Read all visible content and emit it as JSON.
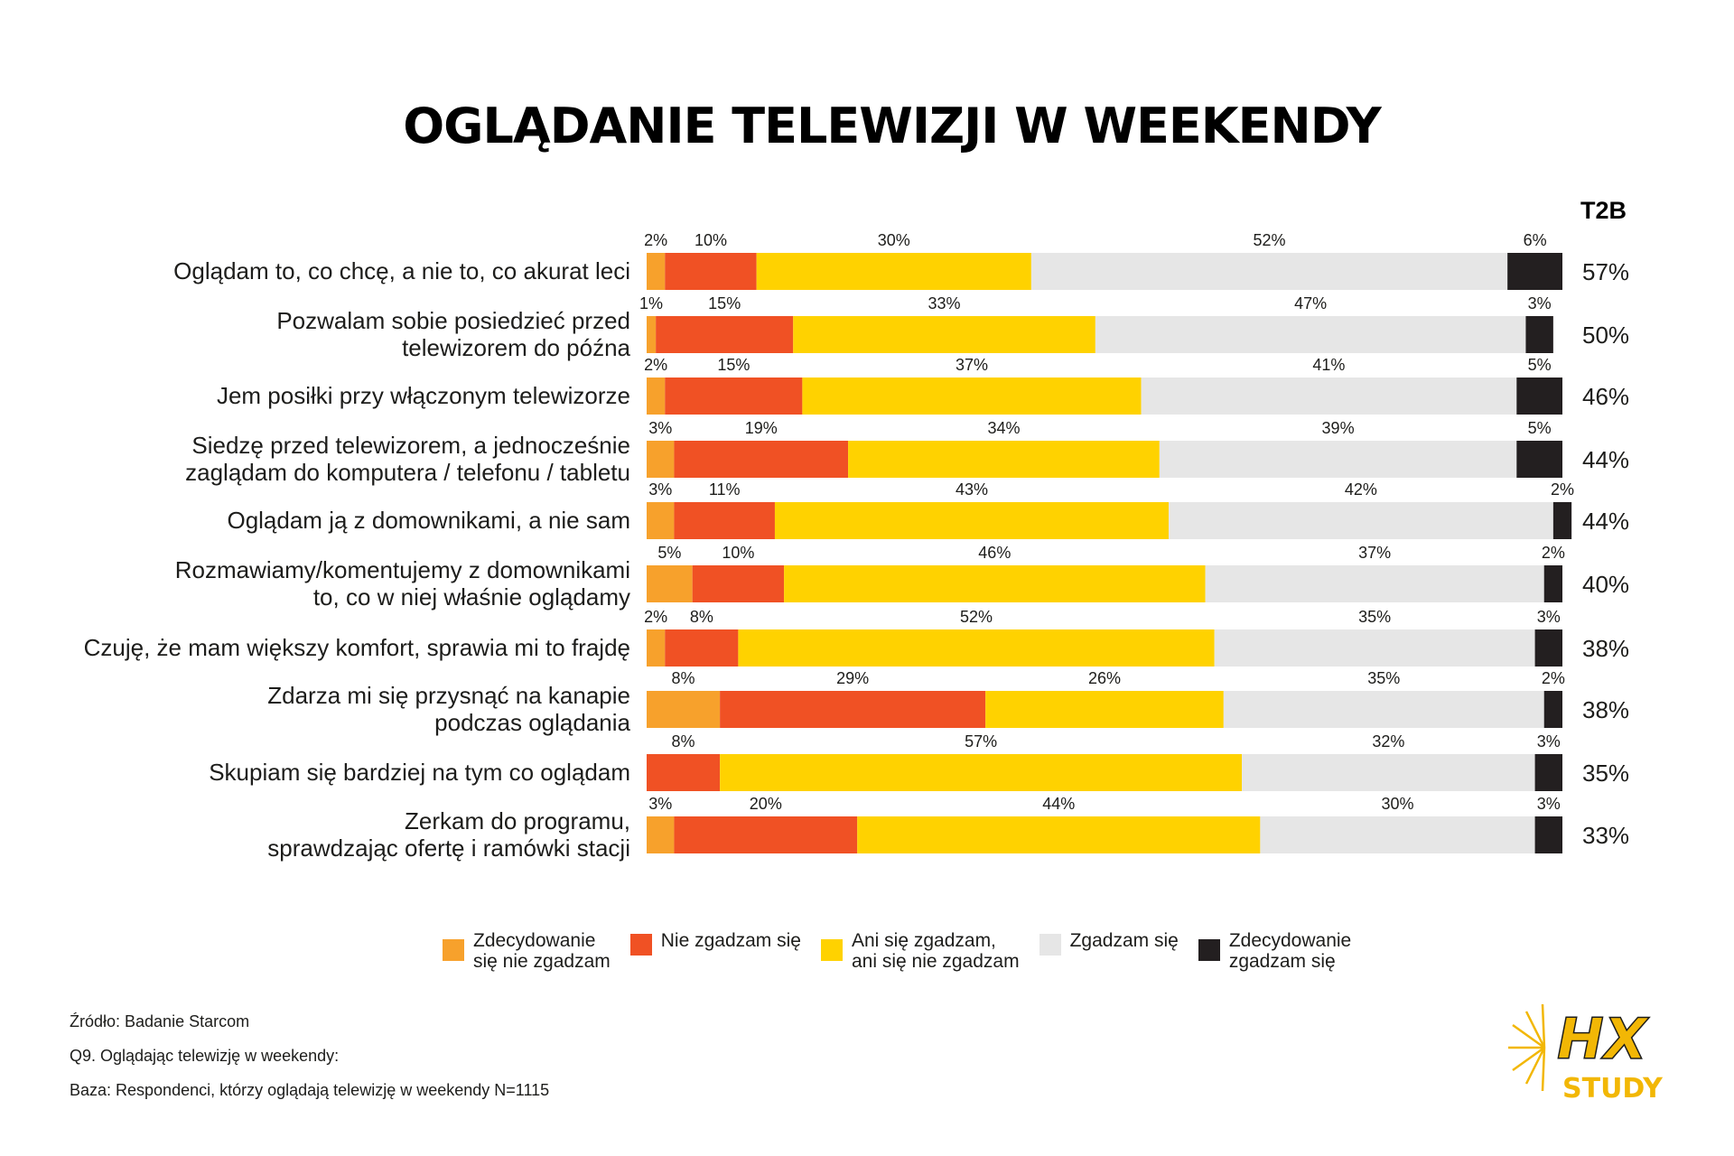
{
  "title": "OGLĄDANIE TELEWIZJI W WEEKENDY",
  "t2b_header": "T2B",
  "colors": {
    "strongly_disagree": "#F7A12C",
    "disagree": "#F05124",
    "neutral": "#FFD200",
    "agree": "#E6E6E6",
    "strongly_agree": "#231F20"
  },
  "chart_data": {
    "type": "bar",
    "orientation": "horizontal-stacked-100",
    "title": "OGLĄDANIE TELEWIZJI W WEEKENDY",
    "categories": [
      [
        "Oglądam to, co chcę, a nie to, co akurat leci"
      ],
      [
        "Pozwalam sobie posiedzieć przed",
        "telewizorem do późna"
      ],
      [
        "Jem posiłki przy włączonym telewizorze"
      ],
      [
        "Siedzę przed telewizorem, a jednocześnie",
        "zaglądam do komputera / telefonu / tabletu"
      ],
      [
        "Oglądam ją z domownikami, a nie sam"
      ],
      [
        "Rozmawiamy/komentujemy z domownikami",
        "to, co w niej właśnie oglądamy"
      ],
      [
        "Czuję, że mam większy komfort, sprawia mi to frajdę"
      ],
      [
        "Zdarza mi się przysnąć na kanapie",
        "podczas oglądania"
      ],
      [
        "Skupiam się bardziej na tym co oglądam"
      ],
      [
        "Zerkam do programu,",
        "sprawdzając ofertę i ramówki stacji"
      ]
    ],
    "series": [
      {
        "name": "Zdecydowanie się nie zgadzam",
        "color": "#F7A12C",
        "values": [
          2,
          1,
          2,
          3,
          3,
          5,
          2,
          8,
          0,
          3
        ]
      },
      {
        "name": "Nie zgadzam się",
        "color": "#F05124",
        "values": [
          10,
          15,
          15,
          19,
          11,
          10,
          8,
          29,
          8,
          20
        ]
      },
      {
        "name": "Ani się zgadzam, ani się nie zgadzam",
        "color": "#FFD200",
        "values": [
          30,
          33,
          37,
          34,
          43,
          46,
          52,
          26,
          57,
          44
        ]
      },
      {
        "name": "Zgadzam się",
        "color": "#E6E6E6",
        "values": [
          52,
          47,
          41,
          39,
          42,
          37,
          35,
          35,
          32,
          30
        ]
      },
      {
        "name": "Zdecydowanie zgadzam się",
        "color": "#231F20",
        "values": [
          6,
          3,
          5,
          5,
          2,
          2,
          3,
          2,
          3,
          3
        ]
      }
    ],
    "t2b": [
      "57%",
      "50%",
      "46%",
      "44%",
      "44%",
      "40%",
      "38%",
      "38%",
      "35%",
      "33%"
    ],
    "value_suffix": "%",
    "xlim": [
      0,
      100
    ],
    "grid": false,
    "legend_position": "bottom"
  },
  "legend": [
    [
      "Zdecydowanie",
      "się nie zgadzam"
    ],
    [
      "Nie zgadzam się"
    ],
    [
      "Ani się zgadzam,",
      "ani się nie zgadzam"
    ],
    [
      "Zgadzam się"
    ],
    [
      "Zdecydowanie",
      "zgadzam się"
    ]
  ],
  "footnotes": {
    "source": "Źródło: Badanie Starcom",
    "question": "Q9. Oglądając telewizję w weekendy:",
    "base": "Baza: Respondenci, którzy oglądają telewizję w weekendy N=1115"
  },
  "logo": {
    "mark": "HX",
    "word": "STUDY"
  }
}
